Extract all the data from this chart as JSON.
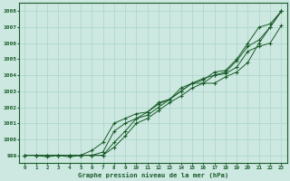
{
  "xlabel": "Graphe pression niveau de la mer (hPa)",
  "bg_color": "#cce8e0",
  "grid_color": "#aad4c8",
  "line_color": "#1a5c2a",
  "xlim": [
    -0.5,
    23.5
  ],
  "ylim": [
    998.5,
    1008.5
  ],
  "yticks": [
    999,
    1000,
    1001,
    1002,
    1003,
    1004,
    1005,
    1006,
    1007,
    1008
  ],
  "xticks": [
    0,
    1,
    2,
    3,
    4,
    5,
    6,
    7,
    8,
    9,
    10,
    11,
    12,
    13,
    14,
    15,
    16,
    17,
    18,
    19,
    20,
    21,
    22,
    23
  ],
  "series": [
    [
      999.0,
      999.0,
      999.0,
      999.0,
      999.0,
      999.0,
      999.0,
      999.0,
      999.8,
      1000.5,
      1001.3,
      1001.5,
      1002.0,
      1002.5,
      1003.0,
      1003.5,
      1003.7,
      1004.2,
      1004.3,
      1005.0,
      1006.0,
      1007.0,
      1007.2,
      1008.0
    ],
    [
      999.0,
      999.0,
      998.9,
      999.0,
      998.9,
      999.0,
      999.0,
      999.0,
      999.5,
      1000.2,
      1001.0,
      1001.3,
      1001.8,
      1002.3,
      1002.7,
      1003.2,
      1003.5,
      1003.5,
      1003.9,
      1004.2,
      1004.8,
      1006.0,
      1007.0,
      1008.0
    ],
    [
      999.0,
      999.0,
      999.0,
      999.0,
      999.0,
      999.0,
      999.0,
      999.2,
      1000.5,
      1001.0,
      1001.3,
      1001.7,
      1002.2,
      1002.5,
      1003.0,
      1003.5,
      1003.8,
      1004.0,
      1004.2,
      1004.9,
      1005.8,
      1006.2,
      1007.0,
      1008.0
    ],
    [
      999.0,
      999.0,
      999.0,
      999.0,
      999.0,
      999.0,
      999.3,
      999.8,
      1001.0,
      1001.3,
      1001.6,
      1001.7,
      1002.3,
      1002.5,
      1003.2,
      1003.5,
      1003.5,
      1004.0,
      1004.1,
      1004.5,
      1005.5,
      1005.8,
      1006.0,
      1007.1
    ]
  ]
}
